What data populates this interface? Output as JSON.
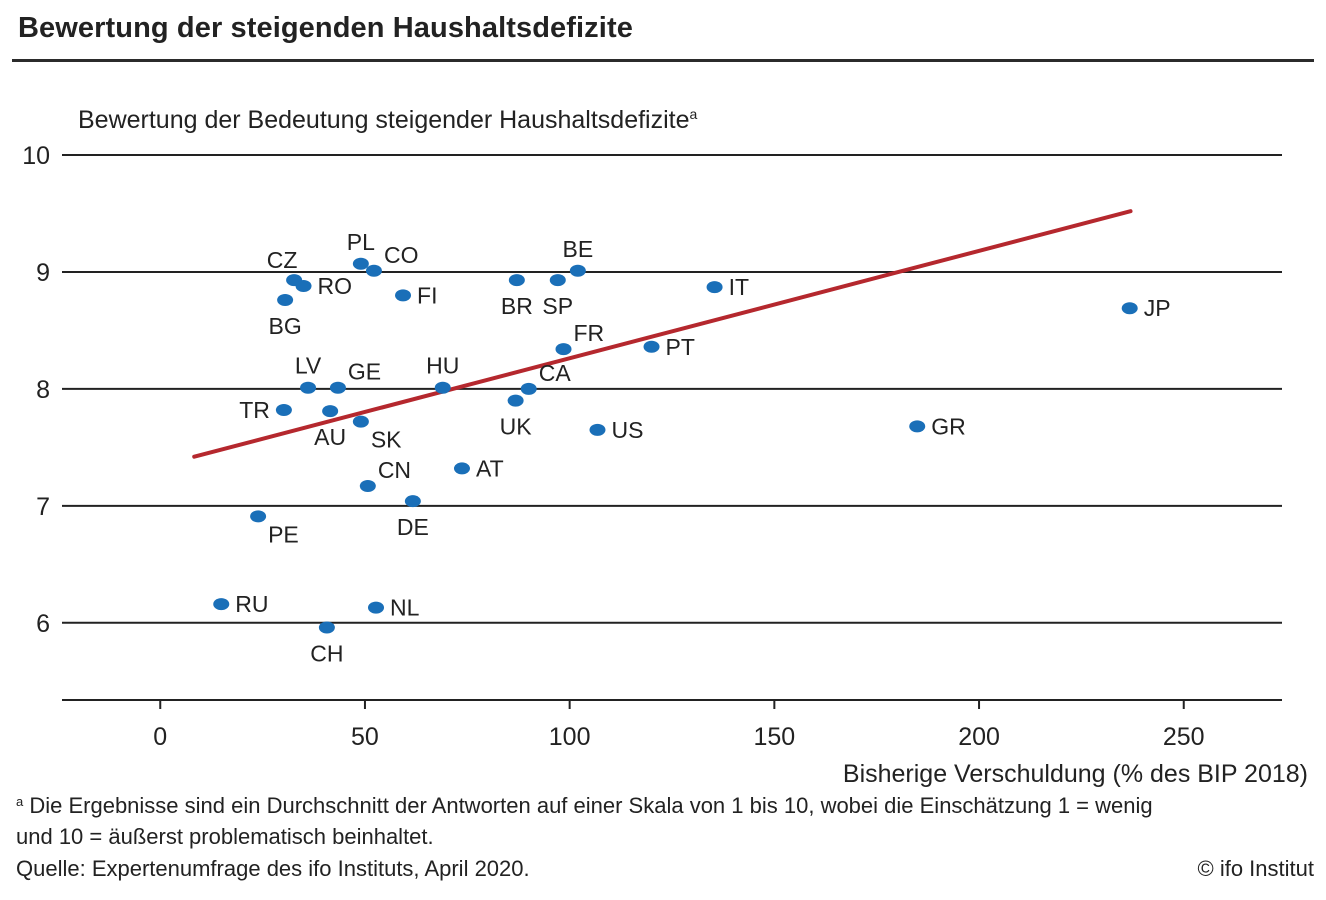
{
  "header": {
    "title": "Bewertung der steigenden Haushaltsdefizite"
  },
  "footer": {
    "note_marker": "a",
    "note_line1": " Die Ergebnisse sind ein Durchschnitt der Antworten auf einer Skala von 1 bis 10, wobei die Einschätzung 1 = wenig",
    "note_line2": "und 10 = äußerst problematisch beinhaltet.",
    "source": "Quelle: Expertenumfrage des ifo Instituts, April 2020.",
    "copyright": "© ifo Institut"
  },
  "colors": {
    "marker": "#1a6fb8",
    "trend": "#b5282e",
    "grid": "#222222",
    "text": "#222222"
  },
  "chart_data": {
    "type": "scatter",
    "title": "Bewertung der steigenden Haushaltsdefizite",
    "ylabel": "Bewertung der Bedeutung steigender Haushaltsdefizite",
    "ylabel_superscript": "a",
    "xlabel": "Bisherige Verschuldung (% des BIP 2018)",
    "xlim": [
      -24,
      274
    ],
    "ylim": [
      5.34,
      10
    ],
    "xticks": [
      0,
      50,
      100,
      150,
      200,
      250
    ],
    "yticks": [
      6,
      7,
      8,
      9,
      10
    ],
    "grid": "horizontal",
    "legend": "none",
    "points": [
      {
        "label": "CZ",
        "x": 32.7,
        "y": 8.93,
        "label_pos": "above-left"
      },
      {
        "label": "RO",
        "x": 35.0,
        "y": 8.88,
        "label_pos": "right"
      },
      {
        "label": "BG",
        "x": 30.5,
        "y": 8.76,
        "label_pos": "below"
      },
      {
        "label": "PL",
        "x": 49.0,
        "y": 9.07,
        "label_pos": "above"
      },
      {
        "label": "CO",
        "x": 52.2,
        "y": 9.01,
        "label_pos": "above-right"
      },
      {
        "label": "FI",
        "x": 59.3,
        "y": 8.8,
        "label_pos": "right"
      },
      {
        "label": "BR",
        "x": 87.1,
        "y": 8.93,
        "label_pos": "below"
      },
      {
        "label": "SP",
        "x": 97.1,
        "y": 8.93,
        "label_pos": "below"
      },
      {
        "label": "BE",
        "x": 102.0,
        "y": 9.01,
        "label_pos": "above"
      },
      {
        "label": "IT",
        "x": 135.4,
        "y": 8.87,
        "label_pos": "right"
      },
      {
        "label": "FR",
        "x": 98.5,
        "y": 8.34,
        "label_pos": "above-right"
      },
      {
        "label": "PT",
        "x": 120.0,
        "y": 8.36,
        "label_pos": "right"
      },
      {
        "label": "JP",
        "x": 236.8,
        "y": 8.69,
        "label_pos": "right"
      },
      {
        "label": "LV",
        "x": 36.1,
        "y": 8.01,
        "label_pos": "above"
      },
      {
        "label": "GE",
        "x": 43.4,
        "y": 8.01,
        "label_pos": "above-right"
      },
      {
        "label": "HU",
        "x": 69.0,
        "y": 8.01,
        "label_pos": "above"
      },
      {
        "label": "CA",
        "x": 90.0,
        "y": 8.0,
        "label_pos": "above-right"
      },
      {
        "label": "UK",
        "x": 86.8,
        "y": 7.9,
        "label_pos": "below"
      },
      {
        "label": "US",
        "x": 106.8,
        "y": 7.65,
        "label_pos": "right"
      },
      {
        "label": "TR",
        "x": 30.2,
        "y": 7.82,
        "label_pos": "left"
      },
      {
        "label": "AU",
        "x": 41.5,
        "y": 7.81,
        "label_pos": "below"
      },
      {
        "label": "SK",
        "x": 49.0,
        "y": 7.72,
        "label_pos": "below-right"
      },
      {
        "label": "GR",
        "x": 184.9,
        "y": 7.68,
        "label_pos": "right"
      },
      {
        "label": "AT",
        "x": 73.7,
        "y": 7.32,
        "label_pos": "right"
      },
      {
        "label": "CN",
        "x": 50.7,
        "y": 7.17,
        "label_pos": "above-right"
      },
      {
        "label": "DE",
        "x": 61.7,
        "y": 7.04,
        "label_pos": "below"
      },
      {
        "label": "PE",
        "x": 23.9,
        "y": 6.91,
        "label_pos": "below-right"
      },
      {
        "label": "RU",
        "x": 14.9,
        "y": 6.16,
        "label_pos": "right"
      },
      {
        "label": "NL",
        "x": 52.7,
        "y": 6.13,
        "label_pos": "right"
      },
      {
        "label": "CH",
        "x": 40.7,
        "y": 5.96,
        "label_pos": "below"
      }
    ],
    "trendline": {
      "x": [
        8.3,
        237.0
      ],
      "y": [
        7.42,
        9.52
      ]
    }
  }
}
